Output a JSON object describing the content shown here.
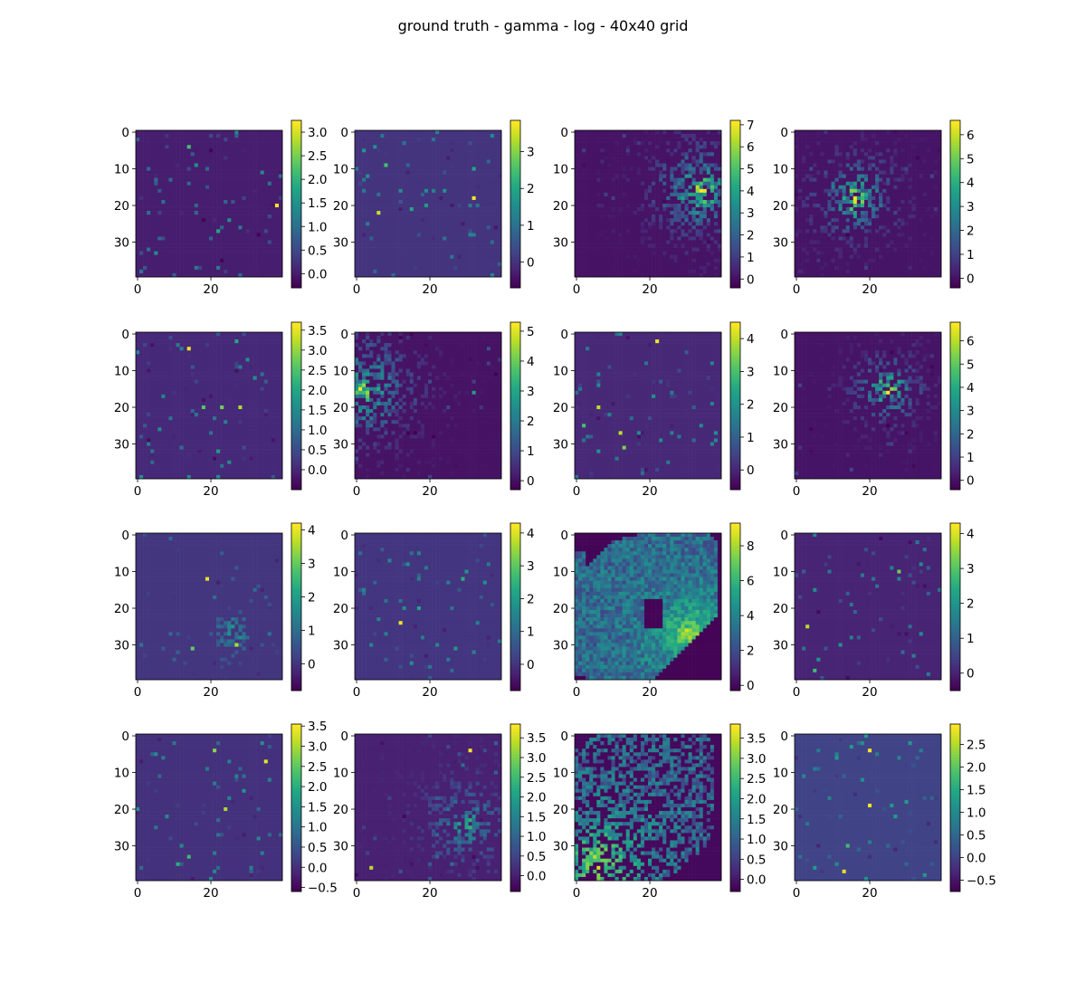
{
  "title": "ground truth - gamma - log - 40x40 grid",
  "colormap": "viridis",
  "chart_data": {
    "type": "heatmap",
    "grid": [
      40,
      40
    ],
    "layout": [
      4,
      4
    ],
    "x_ticks": [
      "0",
      "20"
    ],
    "y_ticks": [
      "0",
      "10",
      "20",
      "30"
    ],
    "panels": [
      {
        "vmin": -0.3,
        "vmax": 3.25,
        "cbar_ticks": [
          "0.0",
          "0.5",
          "1.0",
          "1.5",
          "2.0",
          "2.5",
          "3.0"
        ],
        "background": 0.0,
        "pattern": "sparse",
        "seed": 11,
        "highlights": [
          [
            20,
            38,
            3.2
          ],
          [
            4,
            14,
            2.2
          ],
          [
            27,
            22,
            1.8
          ],
          [
            2,
            24,
            0.5
          ]
        ]
      },
      {
        "vmin": -0.7,
        "vmax": 3.85,
        "cbar_ticks": [
          "0",
          "1",
          "2",
          "3"
        ],
        "background": 0.0,
        "pattern": "sparse",
        "seed": 23,
        "highlights": [
          [
            18,
            32,
            3.8
          ],
          [
            22,
            6,
            3.5
          ],
          [
            10,
            32,
            2.0
          ],
          [
            21,
            15,
            2.0
          ],
          [
            20,
            19,
            1.8
          ],
          [
            9,
            8,
            2.5
          ]
        ]
      },
      {
        "vmin": -0.4,
        "vmax": 7.2,
        "cbar_ticks": [
          "0",
          "1",
          "2",
          "3",
          "4",
          "5",
          "6",
          "7"
        ],
        "background": 0.0,
        "pattern": "blob",
        "seed": 37,
        "blob": [
          16,
          34,
          7,
          7.0
        ],
        "highlights": [
          [
            16,
            35,
            7.0
          ]
        ]
      },
      {
        "vmin": -0.4,
        "vmax": 6.6,
        "cbar_ticks": [
          "0",
          "1",
          "2",
          "3",
          "4",
          "5",
          "6"
        ],
        "background": 0.0,
        "pattern": "blob",
        "seed": 41,
        "blob": [
          18,
          16,
          6,
          6.5
        ],
        "highlights": [
          [
            18,
            16,
            6.5
          ]
        ]
      },
      {
        "vmin": -0.5,
        "vmax": 3.7,
        "cbar_ticks": [
          "0.0",
          "0.5",
          "1.0",
          "1.5",
          "2.0",
          "2.5",
          "3.0",
          "3.5"
        ],
        "background": 0.0,
        "pattern": "sparse",
        "seed": 53,
        "highlights": [
          [
            4,
            14,
            3.6
          ],
          [
            20,
            28,
            3.2
          ],
          [
            20,
            23,
            2.8
          ],
          [
            20,
            18,
            2.6
          ],
          [
            2,
            27,
            2.0
          ],
          [
            32,
            22,
            1.8
          ]
        ]
      },
      {
        "vmin": -0.3,
        "vmax": 5.3,
        "cbar_ticks": [
          "0",
          "1",
          "2",
          "3",
          "4",
          "5"
        ],
        "background": 0.0,
        "pattern": "blob",
        "seed": 61,
        "blob": [
          15,
          1,
          8,
          5.0
        ],
        "highlights": [
          [
            15,
            1,
            5.2
          ],
          [
            16,
            32,
            2.8
          ]
        ]
      },
      {
        "vmin": -0.6,
        "vmax": 4.5,
        "cbar_ticks": [
          "0",
          "1",
          "2",
          "3",
          "4"
        ],
        "background": 0.0,
        "pattern": "sparse",
        "seed": 71,
        "highlights": [
          [
            2,
            22,
            4.4
          ],
          [
            20,
            6,
            4.0
          ],
          [
            27,
            12,
            4.0
          ],
          [
            31,
            13,
            3.5
          ],
          [
            25,
            2,
            3.0
          ],
          [
            32,
            6,
            2.0
          ]
        ]
      },
      {
        "vmin": -0.4,
        "vmax": 6.8,
        "cbar_ticks": [
          "0",
          "1",
          "2",
          "3",
          "4",
          "5",
          "6"
        ],
        "background": 0.0,
        "pattern": "blob",
        "seed": 83,
        "blob": [
          15,
          25,
          5,
          6.5
        ],
        "highlights": [
          [
            16,
            25,
            6.8
          ]
        ]
      },
      {
        "vmin": -0.8,
        "vmax": 4.2,
        "cbar_ticks": [
          "0",
          "1",
          "2",
          "3",
          "4"
        ],
        "background": 0.0,
        "pattern": "ring",
        "seed": 97,
        "blob": [
          27,
          26,
          5,
          2.2
        ],
        "highlights": [
          [
            12,
            19,
            4.0
          ],
          [
            31,
            15,
            3.0
          ],
          [
            30,
            27,
            3.6
          ]
        ]
      },
      {
        "vmin": -0.8,
        "vmax": 4.3,
        "cbar_ticks": [
          "0",
          "1",
          "2",
          "3",
          "4"
        ],
        "background": 0.0,
        "pattern": "sparse",
        "seed": 101,
        "highlights": [
          [
            24,
            12,
            4.2
          ],
          [
            12,
            29,
            2.4
          ],
          [
            20,
            17,
            2.2
          ]
        ]
      },
      {
        "vmin": -0.3,
        "vmax": 9.3,
        "cbar_ticks": [
          "0",
          "2",
          "4",
          "6",
          "8"
        ],
        "background": 0.0,
        "pattern": "disk",
        "seed": 113,
        "blob": [
          22,
          24,
          5,
          9.0
        ],
        "highlights": []
      },
      {
        "vmin": -0.5,
        "vmax": 4.3,
        "cbar_ticks": [
          "0",
          "1",
          "2",
          "3",
          "4"
        ],
        "background": 0.0,
        "pattern": "sparse",
        "seed": 127,
        "highlights": [
          [
            10,
            28,
            3.2
          ],
          [
            25,
            3,
            3.8
          ],
          [
            37,
            5,
            2.8
          ],
          [
            34,
            6,
            2.0
          ]
        ]
      },
      {
        "vmin": -0.6,
        "vmax": 3.55,
        "cbar_ticks": [
          "−0.5",
          "0.0",
          "0.5",
          "1.0",
          "1.5",
          "2.0",
          "2.5",
          "3.0",
          "3.5"
        ],
        "background": 0.0,
        "pattern": "sparse",
        "seed": 131,
        "highlights": [
          [
            7,
            35,
            3.4
          ],
          [
            4,
            21,
            2.8
          ],
          [
            20,
            24,
            3.0
          ],
          [
            35,
            11,
            2.0
          ],
          [
            33,
            14,
            2.2
          ]
        ]
      },
      {
        "vmin": -0.4,
        "vmax": 3.85,
        "cbar_ticks": [
          "0.0",
          "0.5",
          "1.0",
          "1.5",
          "2.0",
          "2.5",
          "3.0",
          "3.5"
        ],
        "background": 0.0,
        "pattern": "scatterblob",
        "seed": 139,
        "blob": [
          24,
          30,
          7,
          2.4
        ],
        "highlights": [
          [
            4,
            31,
            3.8
          ],
          [
            36,
            4,
            3.4
          ]
        ]
      },
      {
        "vmin": -0.3,
        "vmax": 3.85,
        "cbar_ticks": [
          "0.0",
          "0.5",
          "1.0",
          "1.5",
          "2.0",
          "2.5",
          "3.0",
          "3.5"
        ],
        "background": 0.0,
        "pattern": "fan",
        "seed": 151,
        "blob": [
          33,
          6,
          10,
          2.5
        ],
        "highlights": []
      },
      {
        "vmin": -0.75,
        "vmax": 2.95,
        "cbar_ticks": [
          "−0.5",
          "0.0",
          "0.5",
          "1.0",
          "1.5",
          "2.0",
          "2.5"
        ],
        "background": 0.0,
        "pattern": "sparse",
        "seed": 163,
        "highlights": [
          [
            4,
            20,
            2.9
          ],
          [
            19,
            20,
            2.9
          ],
          [
            37,
            13,
            2.8
          ],
          [
            30,
            14,
            1.8
          ]
        ]
      }
    ]
  }
}
